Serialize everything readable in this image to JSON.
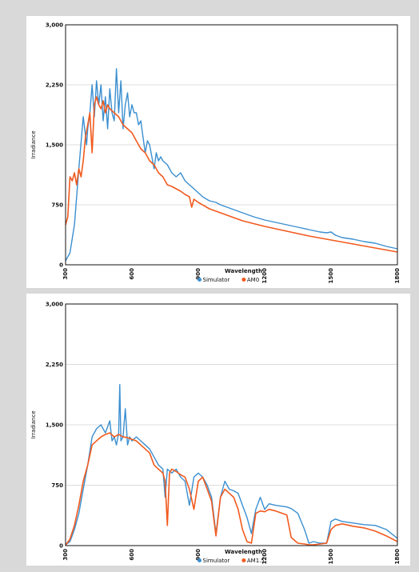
{
  "colors": {
    "series_1": "#3b8fd0",
    "series_2": "#f25a1e"
  },
  "chart_data": [
    {
      "type": "line",
      "ylabel": "Irradiance",
      "xlabel": "Wavelength",
      "xlim": [
        300,
        1800
      ],
      "ylim": [
        0,
        3000
      ],
      "yticks": [
        0,
        750,
        1500,
        2250,
        3000
      ],
      "ytick_labels": [
        "0",
        "750",
        "1,500",
        "2,250",
        "3,000"
      ],
      "xticks": [
        300,
        600,
        900,
        1200,
        1500,
        1800
      ],
      "xtick_labels": [
        "300",
        "600",
        "900",
        "1200",
        "1500",
        "1800"
      ],
      "legend_position": "bottom",
      "grid": true,
      "series": [
        {
          "name": "Simulator",
          "color": "#3b8fd0",
          "x": [
            300,
            320,
            340,
            360,
            380,
            395,
            400,
            410,
            420,
            430,
            440,
            450,
            460,
            470,
            480,
            490,
            500,
            510,
            520,
            530,
            540,
            550,
            560,
            570,
            580,
            590,
            600,
            610,
            620,
            630,
            640,
            650,
            660,
            670,
            680,
            690,
            700,
            710,
            720,
            730,
            740,
            760,
            780,
            800,
            820,
            840,
            860,
            880,
            900,
            920,
            950,
            980,
            1000,
            1050,
            1100,
            1150,
            1200,
            1250,
            1300,
            1350,
            1400,
            1450,
            1480,
            1500,
            1520,
            1550,
            1600,
            1650,
            1700,
            1750,
            1800
          ],
          "values": [
            50,
            150,
            500,
            1200,
            1850,
            1500,
            1700,
            1900,
            2250,
            1850,
            2300,
            2000,
            2250,
            1800,
            2100,
            1700,
            2200,
            1900,
            1800,
            2450,
            1900,
            2300,
            1700,
            2000,
            2150,
            1850,
            2000,
            1900,
            1900,
            1750,
            1800,
            1600,
            1400,
            1550,
            1500,
            1350,
            1200,
            1400,
            1300,
            1350,
            1300,
            1250,
            1150,
            1100,
            1150,
            1050,
            1000,
            950,
            900,
            850,
            800,
            780,
            750,
            700,
            650,
            600,
            560,
            530,
            500,
            470,
            440,
            410,
            400,
            410,
            370,
            340,
            320,
            290,
            270,
            230,
            200
          ]
        },
        {
          "name": "AM0",
          "color": "#f25a1e",
          "x": [
            300,
            310,
            320,
            330,
            340,
            350,
            360,
            370,
            380,
            390,
            400,
            410,
            420,
            430,
            440,
            450,
            460,
            470,
            480,
            490,
            500,
            520,
            540,
            560,
            580,
            600,
            620,
            640,
            660,
            680,
            700,
            720,
            740,
            760,
            780,
            800,
            820,
            840,
            860,
            870,
            880,
            900,
            950,
            1000,
            1050,
            1100,
            1200,
            1300,
            1400,
            1500,
            1600,
            1700,
            1800
          ],
          "values": [
            500,
            600,
            1100,
            1050,
            1150,
            1000,
            1200,
            1100,
            1300,
            1600,
            1750,
            1900,
            1400,
            2000,
            2100,
            2000,
            1950,
            2050,
            1900,
            2000,
            1950,
            1900,
            1850,
            1750,
            1700,
            1650,
            1550,
            1450,
            1400,
            1300,
            1250,
            1150,
            1100,
            1000,
            980,
            950,
            920,
            880,
            850,
            720,
            820,
            780,
            700,
            650,
            600,
            550,
            480,
            420,
            360,
            310,
            260,
            210,
            160
          ]
        }
      ]
    },
    {
      "type": "line",
      "ylabel": "Irradiance",
      "xlabel": "Wavelength",
      "xlim": [
        300,
        1800
      ],
      "ylim": [
        0,
        3000
      ],
      "yticks": [
        0,
        750,
        1500,
        2250,
        3000
      ],
      "ytick_labels": [
        "0",
        "750",
        "1,500",
        "2,250",
        "3,000"
      ],
      "xticks": [
        300,
        600,
        900,
        1200,
        1500,
        1800
      ],
      "xtick_labels": [
        "300",
        "600",
        "900",
        "1200",
        "1500",
        "1800"
      ],
      "legend_position": "bottom",
      "grid": true,
      "series": [
        {
          "name": "Simulator",
          "color": "#3b8fd0",
          "x": [
            300,
            320,
            340,
            360,
            380,
            400,
            420,
            440,
            460,
            480,
            500,
            510,
            520,
            530,
            540,
            545,
            550,
            560,
            570,
            580,
            590,
            600,
            620,
            640,
            660,
            680,
            700,
            720,
            740,
            750,
            760,
            780,
            800,
            820,
            840,
            860,
            880,
            900,
            920,
            940,
            960,
            980,
            1000,
            1020,
            1040,
            1060,
            1080,
            1100,
            1120,
            1140,
            1160,
            1180,
            1200,
            1220,
            1250,
            1300,
            1320,
            1350,
            1380,
            1400,
            1420,
            1450,
            1480,
            1500,
            1520,
            1550,
            1600,
            1650,
            1700,
            1750,
            1800
          ],
          "values": [
            10,
            50,
            200,
            400,
            700,
            1000,
            1350,
            1450,
            1500,
            1400,
            1550,
            1300,
            1350,
            1250,
            1400,
            2000,
            1300,
            1350,
            1700,
            1250,
            1350,
            1300,
            1350,
            1300,
            1250,
            1200,
            1100,
            1000,
            950,
            600,
            950,
            900,
            950,
            850,
            800,
            500,
            850,
            900,
            850,
            750,
            600,
            150,
            600,
            800,
            700,
            680,
            650,
            500,
            350,
            150,
            450,
            600,
            450,
            520,
            500,
            480,
            460,
            400,
            200,
            30,
            50,
            30,
            30,
            300,
            330,
            300,
            280,
            260,
            250,
            200,
            90
          ]
        },
        {
          "name": "AM1.5",
          "color": "#f25a1e",
          "x": [
            300,
            320,
            340,
            360,
            380,
            400,
            420,
            440,
            460,
            480,
            500,
            520,
            540,
            560,
            580,
            600,
            620,
            640,
            660,
            680,
            700,
            720,
            740,
            750,
            760,
            770,
            780,
            800,
            820,
            840,
            860,
            880,
            900,
            920,
            940,
            960,
            980,
            1000,
            1020,
            1040,
            1060,
            1080,
            1100,
            1120,
            1140,
            1160,
            1180,
            1200,
            1220,
            1250,
            1300,
            1320,
            1350,
            1380,
            1400,
            1420,
            1450,
            1480,
            1500,
            1520,
            1550,
            1600,
            1650,
            1700,
            1750,
            1800
          ],
          "values": [
            5,
            80,
            250,
            500,
            800,
            1000,
            1250,
            1300,
            1350,
            1380,
            1400,
            1350,
            1380,
            1350,
            1340,
            1320,
            1300,
            1250,
            1200,
            1150,
            1000,
            950,
            900,
            800,
            250,
            900,
            950,
            920,
            880,
            850,
            700,
            450,
            800,
            850,
            700,
            550,
            120,
            600,
            700,
            650,
            600,
            450,
            200,
            50,
            30,
            400,
            430,
            420,
            450,
            430,
            380,
            100,
            30,
            20,
            10,
            10,
            20,
            30,
            200,
            250,
            270,
            240,
            220,
            180,
            120,
            50
          ]
        }
      ]
    }
  ]
}
